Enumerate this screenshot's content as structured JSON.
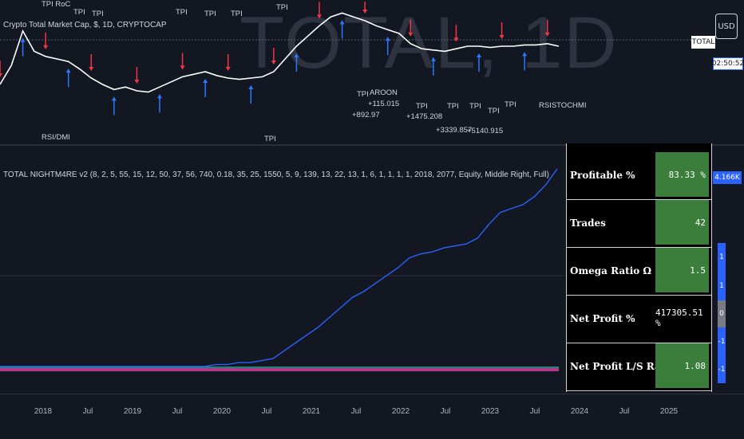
{
  "chart": {
    "watermark": "TOTAL, 1D",
    "symbol_title": "Crypto Total Market Cap, $, 1D, CRYPTOCAP",
    "study_title": "TOTAL NIGHTM4RE v2 (8, 2, 5, 55, 15, 12, 50, 37, 56, 740, 0.18, 35, 25, 1550, 5, 9, 139, 13, 22, 13, 1, 6, 1, 1, 1, 1, 2018, 2077, Equity, Middle Right, Full)",
    "currency_button": "USD",
    "price_label": "TOTAL",
    "countdown_label": "02:50:52",
    "equity_badge": "4.166K",
    "mini_badges": [
      "1",
      "1",
      "0",
      "-1",
      "-1"
    ],
    "colors": {
      "background": "#131722",
      "price_line": "#ffffff",
      "equity_line": "#2962ff",
      "buy_arrow": "#2979ff",
      "sell_arrow": "#f23645",
      "stats_value_bg": "#3b7d3b"
    },
    "annotations": [
      "TPI RoC",
      "TPI",
      "TPI",
      "TPI",
      "TPI",
      "TPI",
      "TPI",
      "TPI",
      "AROON",
      "+115.015",
      "+892.97",
      "TPI",
      "+1475.208",
      "TPI",
      "TPI",
      "TPI",
      "TPI",
      "+3339.857",
      "+5140.915",
      "RSISTOCHMI",
      "RSI/DMI",
      "TPI"
    ]
  },
  "stats": [
    {
      "label": "Profitable %",
      "value": "83.33 %"
    },
    {
      "label": "Trades",
      "value": "42"
    },
    {
      "label": "Omega Ratio Ω",
      "value": "1.5"
    },
    {
      "label": "Net Profit %",
      "value": "417305.51 %"
    },
    {
      "label": "Net Profit L/S Ratio",
      "value": "1.08"
    }
  ],
  "x_axis": {
    "ticks": [
      "2018",
      "Jul",
      "2019",
      "Jul",
      "2020",
      "Jul",
      "2021",
      "Jul",
      "2022",
      "Jul",
      "2023",
      "Jul",
      "2024",
      "Jul",
      "2025"
    ]
  },
  "price_series": [
    0.4,
    0.55,
    0.82,
    0.66,
    0.62,
    0.6,
    0.58,
    0.52,
    0.45,
    0.4,
    0.36,
    0.38,
    0.35,
    0.34,
    0.38,
    0.42,
    0.46,
    0.48,
    0.5,
    0.47,
    0.45,
    0.44,
    0.45,
    0.46,
    0.5,
    0.6,
    0.7,
    0.78,
    0.86,
    0.93,
    0.96,
    0.93,
    0.9,
    0.86,
    0.83,
    0.8,
    0.72,
    0.68,
    0.67,
    0.66,
    0.68,
    0.7,
    0.7,
    0.69,
    0.7,
    0.7,
    0.71,
    0.71,
    0.72,
    0.7
  ],
  "equity_series": [
    0.0,
    0.0,
    0.0,
    0.0,
    0.0,
    0.0,
    0.0,
    0.0,
    0.0,
    0.0,
    0.0,
    0.0,
    0.0,
    0.0,
    0.0,
    0.0,
    0.0,
    0.0,
    0.0,
    0.01,
    0.01,
    0.02,
    0.02,
    0.03,
    0.04,
    0.08,
    0.12,
    0.16,
    0.2,
    0.25,
    0.3,
    0.35,
    0.38,
    0.42,
    0.46,
    0.5,
    0.55,
    0.57,
    0.58,
    0.6,
    0.61,
    0.62,
    0.65,
    0.72,
    0.78,
    0.8,
    0.82,
    0.86,
    0.92,
    1.0
  ]
}
